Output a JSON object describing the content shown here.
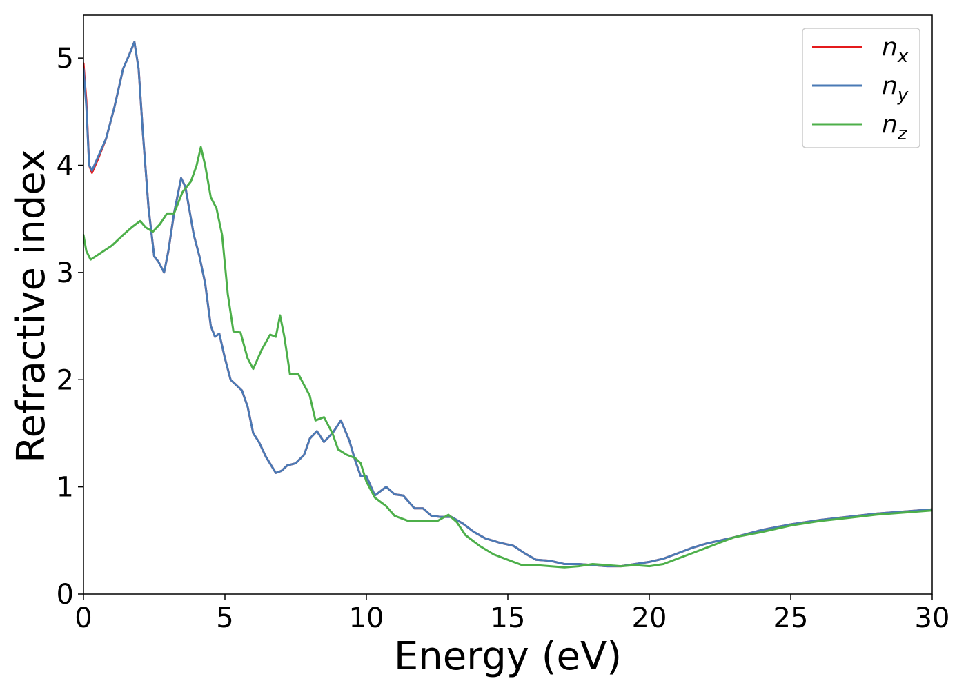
{
  "chart_data": {
    "type": "line",
    "title": "",
    "xlabel": "Energy (eV)",
    "ylabel": "Refractive index",
    "xlim": [
      0,
      30
    ],
    "ylim": [
      0,
      5.4
    ],
    "xticks": [
      "0",
      "5",
      "10",
      "15",
      "20",
      "25",
      "30"
    ],
    "yticks": [
      "0",
      "1",
      "2",
      "3",
      "4",
      "5"
    ],
    "grid": false,
    "legend_position": "top-right",
    "series": [
      {
        "name": "n_x",
        "legend_base": "n",
        "legend_sub": "x",
        "color": "#e41a1c",
        "points": [
          [
            0,
            4.95
          ],
          [
            0.1,
            4.6
          ],
          [
            0.2,
            4.0
          ],
          [
            0.3,
            3.93
          ],
          [
            0.5,
            4.05
          ],
          [
            0.8,
            4.25
          ],
          [
            1.1,
            4.55
          ],
          [
            1.4,
            4.9
          ],
          [
            1.6,
            5.02
          ],
          [
            1.8,
            5.15
          ],
          [
            1.95,
            4.9
          ],
          [
            2.1,
            4.3
          ],
          [
            2.3,
            3.6
          ],
          [
            2.5,
            3.15
          ],
          [
            2.65,
            3.1
          ],
          [
            2.85,
            3.0
          ],
          [
            3.0,
            3.2
          ],
          [
            3.2,
            3.55
          ],
          [
            3.45,
            3.88
          ],
          [
            3.6,
            3.8
          ],
          [
            3.9,
            3.35
          ],
          [
            4.1,
            3.15
          ],
          [
            4.3,
            2.9
          ],
          [
            4.5,
            2.5
          ],
          [
            4.65,
            2.4
          ],
          [
            4.8,
            2.43
          ],
          [
            5.0,
            2.2
          ],
          [
            5.2,
            2.0
          ],
          [
            5.4,
            1.95
          ],
          [
            5.6,
            1.9
          ],
          [
            5.8,
            1.75
          ],
          [
            6.0,
            1.5
          ],
          [
            6.2,
            1.42
          ],
          [
            6.45,
            1.28
          ],
          [
            6.8,
            1.13
          ],
          [
            7.0,
            1.15
          ],
          [
            7.2,
            1.2
          ],
          [
            7.5,
            1.22
          ],
          [
            7.8,
            1.3
          ],
          [
            8.0,
            1.45
          ],
          [
            8.25,
            1.52
          ],
          [
            8.5,
            1.42
          ],
          [
            8.8,
            1.5
          ],
          [
            9.1,
            1.62
          ],
          [
            9.4,
            1.43
          ],
          [
            9.6,
            1.25
          ],
          [
            9.8,
            1.1
          ],
          [
            10.0,
            1.1
          ],
          [
            10.3,
            0.92
          ],
          [
            10.7,
            1.0
          ],
          [
            11.0,
            0.93
          ],
          [
            11.3,
            0.92
          ],
          [
            11.7,
            0.8
          ],
          [
            12.0,
            0.8
          ],
          [
            12.3,
            0.73
          ],
          [
            12.6,
            0.72
          ],
          [
            13.0,
            0.72
          ],
          [
            13.4,
            0.66
          ],
          [
            13.8,
            0.58
          ],
          [
            14.2,
            0.52
          ],
          [
            14.7,
            0.48
          ],
          [
            15.2,
            0.45
          ],
          [
            15.6,
            0.38
          ],
          [
            16.0,
            0.32
          ],
          [
            16.5,
            0.31
          ],
          [
            17.0,
            0.28
          ],
          [
            17.5,
            0.28
          ],
          [
            18.0,
            0.27
          ],
          [
            18.5,
            0.26
          ],
          [
            19.0,
            0.26
          ],
          [
            19.5,
            0.28
          ],
          [
            20.0,
            0.3
          ],
          [
            20.5,
            0.33
          ],
          [
            21.0,
            0.38
          ],
          [
            21.5,
            0.43
          ],
          [
            22.0,
            0.47
          ],
          [
            22.5,
            0.5
          ],
          [
            23.0,
            0.53
          ],
          [
            24.0,
            0.6
          ],
          [
            25.0,
            0.65
          ],
          [
            26.0,
            0.69
          ],
          [
            27.0,
            0.72
          ],
          [
            28.0,
            0.75
          ],
          [
            29.0,
            0.77
          ],
          [
            30.0,
            0.79
          ]
        ]
      },
      {
        "name": "n_y",
        "legend_base": "n",
        "legend_sub": "y",
        "color": "#4a7ab5",
        "points": [
          [
            0,
            4.9
          ],
          [
            0.1,
            4.55
          ],
          [
            0.2,
            4.0
          ],
          [
            0.3,
            3.95
          ],
          [
            0.5,
            4.07
          ],
          [
            0.8,
            4.25
          ],
          [
            1.1,
            4.55
          ],
          [
            1.4,
            4.9
          ],
          [
            1.6,
            5.02
          ],
          [
            1.8,
            5.15
          ],
          [
            1.95,
            4.9
          ],
          [
            2.1,
            4.3
          ],
          [
            2.3,
            3.6
          ],
          [
            2.5,
            3.15
          ],
          [
            2.65,
            3.1
          ],
          [
            2.85,
            3.0
          ],
          [
            3.0,
            3.2
          ],
          [
            3.2,
            3.55
          ],
          [
            3.45,
            3.88
          ],
          [
            3.6,
            3.8
          ],
          [
            3.9,
            3.35
          ],
          [
            4.1,
            3.15
          ],
          [
            4.3,
            2.9
          ],
          [
            4.5,
            2.5
          ],
          [
            4.65,
            2.4
          ],
          [
            4.8,
            2.43
          ],
          [
            5.0,
            2.2
          ],
          [
            5.2,
            2.0
          ],
          [
            5.4,
            1.95
          ],
          [
            5.6,
            1.9
          ],
          [
            5.8,
            1.75
          ],
          [
            6.0,
            1.5
          ],
          [
            6.2,
            1.42
          ],
          [
            6.45,
            1.28
          ],
          [
            6.8,
            1.13
          ],
          [
            7.0,
            1.15
          ],
          [
            7.2,
            1.2
          ],
          [
            7.5,
            1.22
          ],
          [
            7.8,
            1.3
          ],
          [
            8.0,
            1.45
          ],
          [
            8.25,
            1.52
          ],
          [
            8.5,
            1.42
          ],
          [
            8.8,
            1.5
          ],
          [
            9.1,
            1.62
          ],
          [
            9.4,
            1.43
          ],
          [
            9.6,
            1.25
          ],
          [
            9.8,
            1.1
          ],
          [
            10.0,
            1.1
          ],
          [
            10.3,
            0.92
          ],
          [
            10.7,
            1.0
          ],
          [
            11.0,
            0.93
          ],
          [
            11.3,
            0.92
          ],
          [
            11.7,
            0.8
          ],
          [
            12.0,
            0.8
          ],
          [
            12.3,
            0.73
          ],
          [
            12.6,
            0.72
          ],
          [
            13.0,
            0.72
          ],
          [
            13.4,
            0.66
          ],
          [
            13.8,
            0.58
          ],
          [
            14.2,
            0.52
          ],
          [
            14.7,
            0.48
          ],
          [
            15.2,
            0.45
          ],
          [
            15.6,
            0.38
          ],
          [
            16.0,
            0.32
          ],
          [
            16.5,
            0.31
          ],
          [
            17.0,
            0.28
          ],
          [
            17.5,
            0.28
          ],
          [
            18.0,
            0.27
          ],
          [
            18.5,
            0.26
          ],
          [
            19.0,
            0.26
          ],
          [
            19.5,
            0.28
          ],
          [
            20.0,
            0.3
          ],
          [
            20.5,
            0.33
          ],
          [
            21.0,
            0.38
          ],
          [
            21.5,
            0.43
          ],
          [
            22.0,
            0.47
          ],
          [
            22.5,
            0.5
          ],
          [
            23.0,
            0.53
          ],
          [
            24.0,
            0.6
          ],
          [
            25.0,
            0.65
          ],
          [
            26.0,
            0.69
          ],
          [
            27.0,
            0.72
          ],
          [
            28.0,
            0.75
          ],
          [
            29.0,
            0.77
          ],
          [
            30.0,
            0.79
          ]
        ]
      },
      {
        "name": "n_z",
        "legend_base": "n",
        "legend_sub": "z",
        "color": "#4daf4a",
        "points": [
          [
            0,
            3.35
          ],
          [
            0.1,
            3.2
          ],
          [
            0.25,
            3.12
          ],
          [
            0.6,
            3.18
          ],
          [
            1.0,
            3.25
          ],
          [
            1.4,
            3.35
          ],
          [
            1.7,
            3.42
          ],
          [
            2.0,
            3.48
          ],
          [
            2.2,
            3.42
          ],
          [
            2.45,
            3.38
          ],
          [
            2.7,
            3.45
          ],
          [
            2.95,
            3.55
          ],
          [
            3.2,
            3.55
          ],
          [
            3.5,
            3.75
          ],
          [
            3.8,
            3.85
          ],
          [
            4.0,
            4.0
          ],
          [
            4.15,
            4.17
          ],
          [
            4.3,
            4.0
          ],
          [
            4.5,
            3.7
          ],
          [
            4.7,
            3.6
          ],
          [
            4.9,
            3.35
          ],
          [
            5.1,
            2.8
          ],
          [
            5.3,
            2.45
          ],
          [
            5.55,
            2.44
          ],
          [
            5.8,
            2.2
          ],
          [
            6.0,
            2.1
          ],
          [
            6.3,
            2.28
          ],
          [
            6.6,
            2.42
          ],
          [
            6.8,
            2.4
          ],
          [
            6.95,
            2.6
          ],
          [
            7.1,
            2.4
          ],
          [
            7.3,
            2.05
          ],
          [
            7.6,
            2.05
          ],
          [
            7.9,
            1.9
          ],
          [
            8.0,
            1.85
          ],
          [
            8.2,
            1.62
          ],
          [
            8.5,
            1.65
          ],
          [
            8.8,
            1.5
          ],
          [
            9.0,
            1.35
          ],
          [
            9.3,
            1.3
          ],
          [
            9.6,
            1.27
          ],
          [
            9.8,
            1.22
          ],
          [
            10.0,
            1.05
          ],
          [
            10.3,
            0.9
          ],
          [
            10.7,
            0.82
          ],
          [
            11.0,
            0.73
          ],
          [
            11.5,
            0.68
          ],
          [
            12.0,
            0.68
          ],
          [
            12.5,
            0.68
          ],
          [
            12.9,
            0.74
          ],
          [
            13.2,
            0.67
          ],
          [
            13.5,
            0.55
          ],
          [
            14.0,
            0.45
          ],
          [
            14.5,
            0.37
          ],
          [
            15.0,
            0.32
          ],
          [
            15.5,
            0.27
          ],
          [
            16.0,
            0.27
          ],
          [
            16.5,
            0.26
          ],
          [
            17.0,
            0.25
          ],
          [
            17.5,
            0.26
          ],
          [
            18.0,
            0.28
          ],
          [
            18.5,
            0.27
          ],
          [
            19.0,
            0.26
          ],
          [
            19.5,
            0.27
          ],
          [
            20.0,
            0.26
          ],
          [
            20.5,
            0.28
          ],
          [
            21.0,
            0.33
          ],
          [
            21.5,
            0.38
          ],
          [
            22.0,
            0.43
          ],
          [
            22.5,
            0.48
          ],
          [
            23.0,
            0.53
          ],
          [
            24.0,
            0.58
          ],
          [
            25.0,
            0.64
          ],
          [
            26.0,
            0.68
          ],
          [
            27.0,
            0.71
          ],
          [
            28.0,
            0.74
          ],
          [
            29.0,
            0.76
          ],
          [
            30.0,
            0.78
          ]
        ]
      }
    ]
  }
}
